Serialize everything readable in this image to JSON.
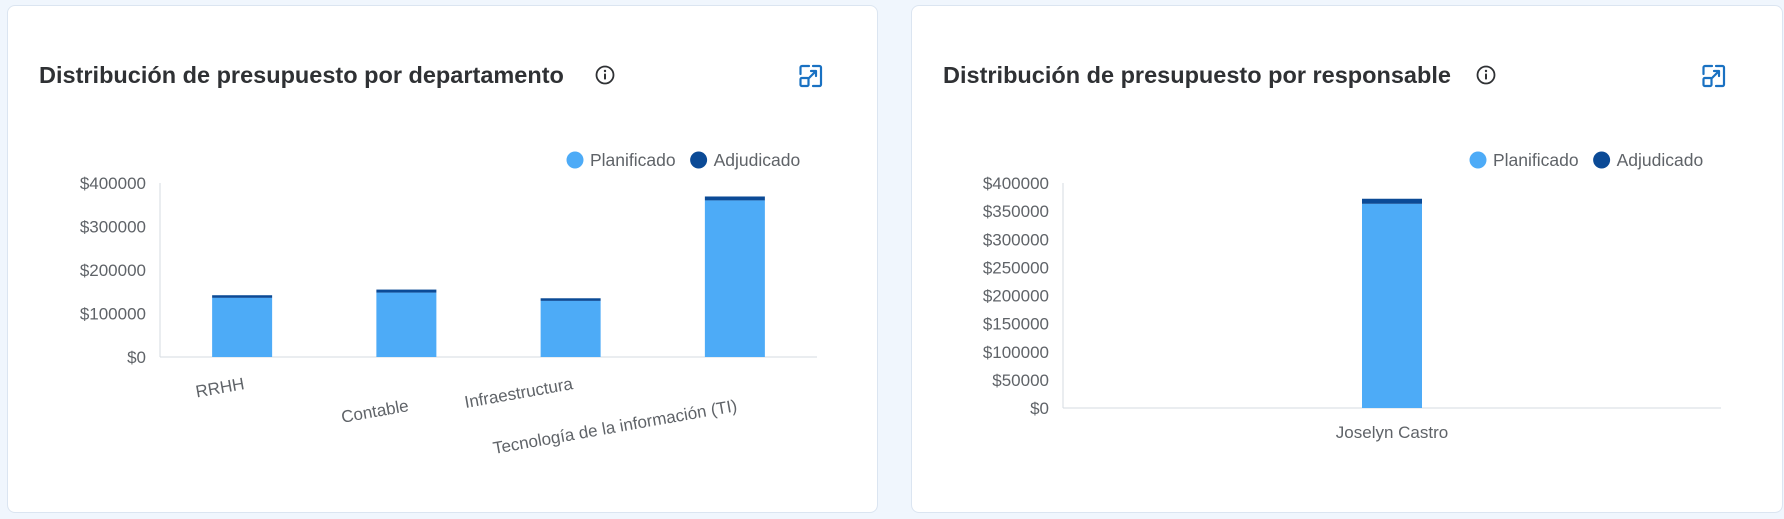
{
  "colors": {
    "planned": "#4dabf7",
    "awarded": "#0b4a96",
    "icon": "#1971c2",
    "axis": "#d6dbe1"
  },
  "cards": [
    {
      "title": "Distribución de presupuesto por departamento",
      "info_icon": "info-circle-icon",
      "expand_icon": "expand-icon"
    },
    {
      "title": "Distribución de presupuesto por responsable",
      "info_icon": "info-circle-icon",
      "expand_icon": "expand-icon"
    }
  ],
  "chart_data": [
    {
      "type": "bar",
      "stacked": true,
      "categories": [
        "RRHH",
        "Contable",
        "Infraestructura",
        "Tecnología de la información (TI)"
      ],
      "series": [
        {
          "name": "Planificado",
          "values": [
            136000,
            148000,
            129000,
            360000
          ]
        },
        {
          "name": "Adjudicado",
          "values": [
            6000,
            7000,
            6000,
            9000
          ]
        }
      ],
      "yticks": [
        "$400000",
        "$300000",
        "$200000",
        "$100000",
        "$0"
      ],
      "ylim": [
        0,
        400000
      ],
      "legend": "top-right",
      "grid": false
    },
    {
      "type": "bar",
      "stacked": true,
      "categories": [
        "Joselyn Castro"
      ],
      "series": [
        {
          "name": "Planificado",
          "values": [
            363000
          ]
        },
        {
          "name": "Adjudicado",
          "values": [
            9000
          ]
        }
      ],
      "yticks": [
        "$400000",
        "$350000",
        "$300000",
        "$250000",
        "$200000",
        "$150000",
        "$100000",
        "$50000",
        "$0"
      ],
      "ylim": [
        0,
        400000
      ],
      "legend": "top-right",
      "grid": false
    }
  ]
}
